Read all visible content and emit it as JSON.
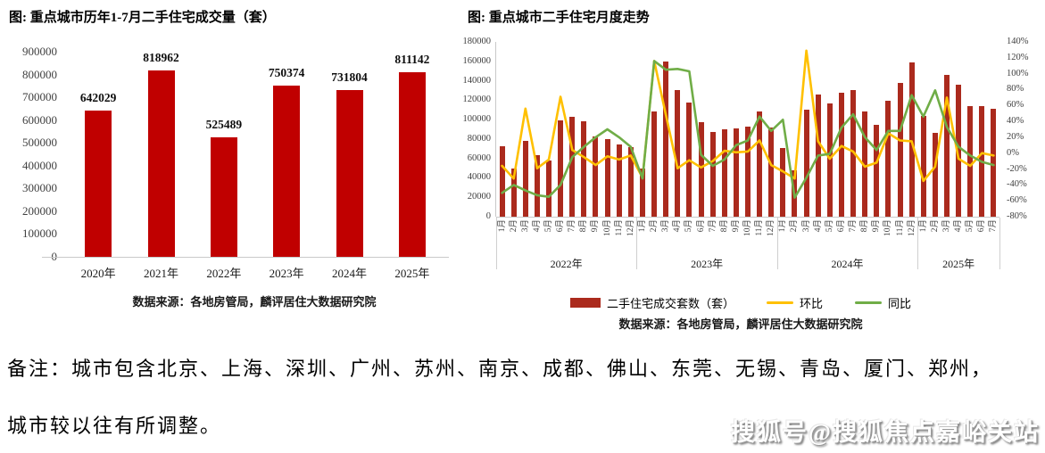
{
  "note": {
    "line1": "备注：城市包含北京、上海、深圳、广州、苏州、南京、成都、佛山、东莞、无锡、青岛、厦门、郑州，",
    "line2": "城市较以往有所调整。"
  },
  "watermark": {
    "text": "搜狐号@搜狐焦点嘉峪关站"
  },
  "chart_data": [
    {
      "id": "annual",
      "type": "bar",
      "title": "图: 重点城市历年1-7月二手住宅成交量（套）",
      "source": "数据来源：各地房管局，麟评居住大数据研究院",
      "categories": [
        "2020年",
        "2021年",
        "2022年",
        "2023年",
        "2024年",
        "2025年"
      ],
      "values": [
        642029,
        818962,
        525489,
        750374,
        731804,
        811142
      ],
      "ylim": [
        0,
        900000
      ],
      "ytick_step": 100000,
      "bar_color": "#c00000",
      "grid": false,
      "value_labels": true
    },
    {
      "id": "monthly",
      "type": "bar+line",
      "title": "图: 重点城市二手住宅月度走势",
      "source": "数据来源：各地房管局，麟评居住大数据研究院",
      "categories": [
        "1月",
        "2月",
        "3月",
        "4月",
        "5月",
        "6月",
        "7月",
        "8月",
        "9月",
        "10月",
        "11月",
        "12月",
        "1月",
        "2月",
        "3月",
        "4月",
        "5月",
        "6月",
        "7月",
        "8月",
        "9月",
        "10月",
        "11月",
        "12月",
        "1月",
        "2月",
        "3月",
        "4月",
        "5月",
        "6月",
        "7月",
        "8月",
        "9月",
        "10月",
        "11月",
        "12月",
        "1月",
        "2月",
        "3月",
        "4月",
        "5月",
        "6月",
        "7月"
      ],
      "year_groups": [
        {
          "label": "2022年",
          "months": 12
        },
        {
          "label": "2023年",
          "months": 12
        },
        {
          "label": "2024年",
          "months": 12
        },
        {
          "label": "2025年",
          "months": 7
        }
      ],
      "series": [
        {
          "name": "二手住宅成交套数（套）",
          "type": "bar",
          "axis": "left",
          "color": "#ab2a1d",
          "values": [
            73000,
            50000,
            78000,
            63000,
            58000,
            99000,
            103000,
            98000,
            83000,
            80000,
            74000,
            72000,
            50000,
            108000,
            160000,
            130000,
            118000,
            97000,
            87000,
            90000,
            91000,
            93000,
            108000,
            92000,
            71000,
            48000,
            110000,
            126000,
            117000,
            128000,
            130000,
            108000,
            95000,
            119000,
            138000,
            159000,
            104000,
            86000,
            146000,
            136000,
            114000,
            114000,
            111000
          ]
        },
        {
          "name": "环比",
          "type": "line",
          "axis": "right",
          "color": "#ffc000",
          "values": [
            -16,
            -32,
            56,
            -19,
            -8,
            71,
            4,
            -5,
            -15,
            -4,
            -8,
            -3,
            -31,
            116,
            48,
            -19,
            -9,
            -18,
            -10,
            3,
            1,
            2,
            16,
            -15,
            -23,
            -32,
            129,
            15,
            -7,
            9,
            2,
            -17,
            -12,
            25,
            16,
            15,
            -35,
            -17,
            70,
            -7,
            -16,
            0,
            -3
          ]
        },
        {
          "name": "同比",
          "type": "line",
          "axis": "right",
          "color": "#70ad47",
          "values": [
            -50,
            -40,
            -47,
            -53,
            -55,
            -40,
            -5,
            8,
            20,
            30,
            20,
            8,
            -32,
            116,
            105,
            106,
            103,
            -2,
            -16,
            -8,
            10,
            16,
            46,
            28,
            42,
            -56,
            -31,
            -3,
            -1,
            32,
            49,
            20,
            4,
            28,
            28,
            73,
            46,
            79,
            33,
            8,
            -3,
            -11,
            -15
          ]
        }
      ],
      "ylim_left": [
        0,
        180000
      ],
      "ytick_step_left": 20000,
      "ylim_right": [
        -80,
        140
      ],
      "ytick_step_right": 20,
      "right_axis_suffix": "%",
      "grid": false,
      "legend_position": "bottom"
    }
  ]
}
